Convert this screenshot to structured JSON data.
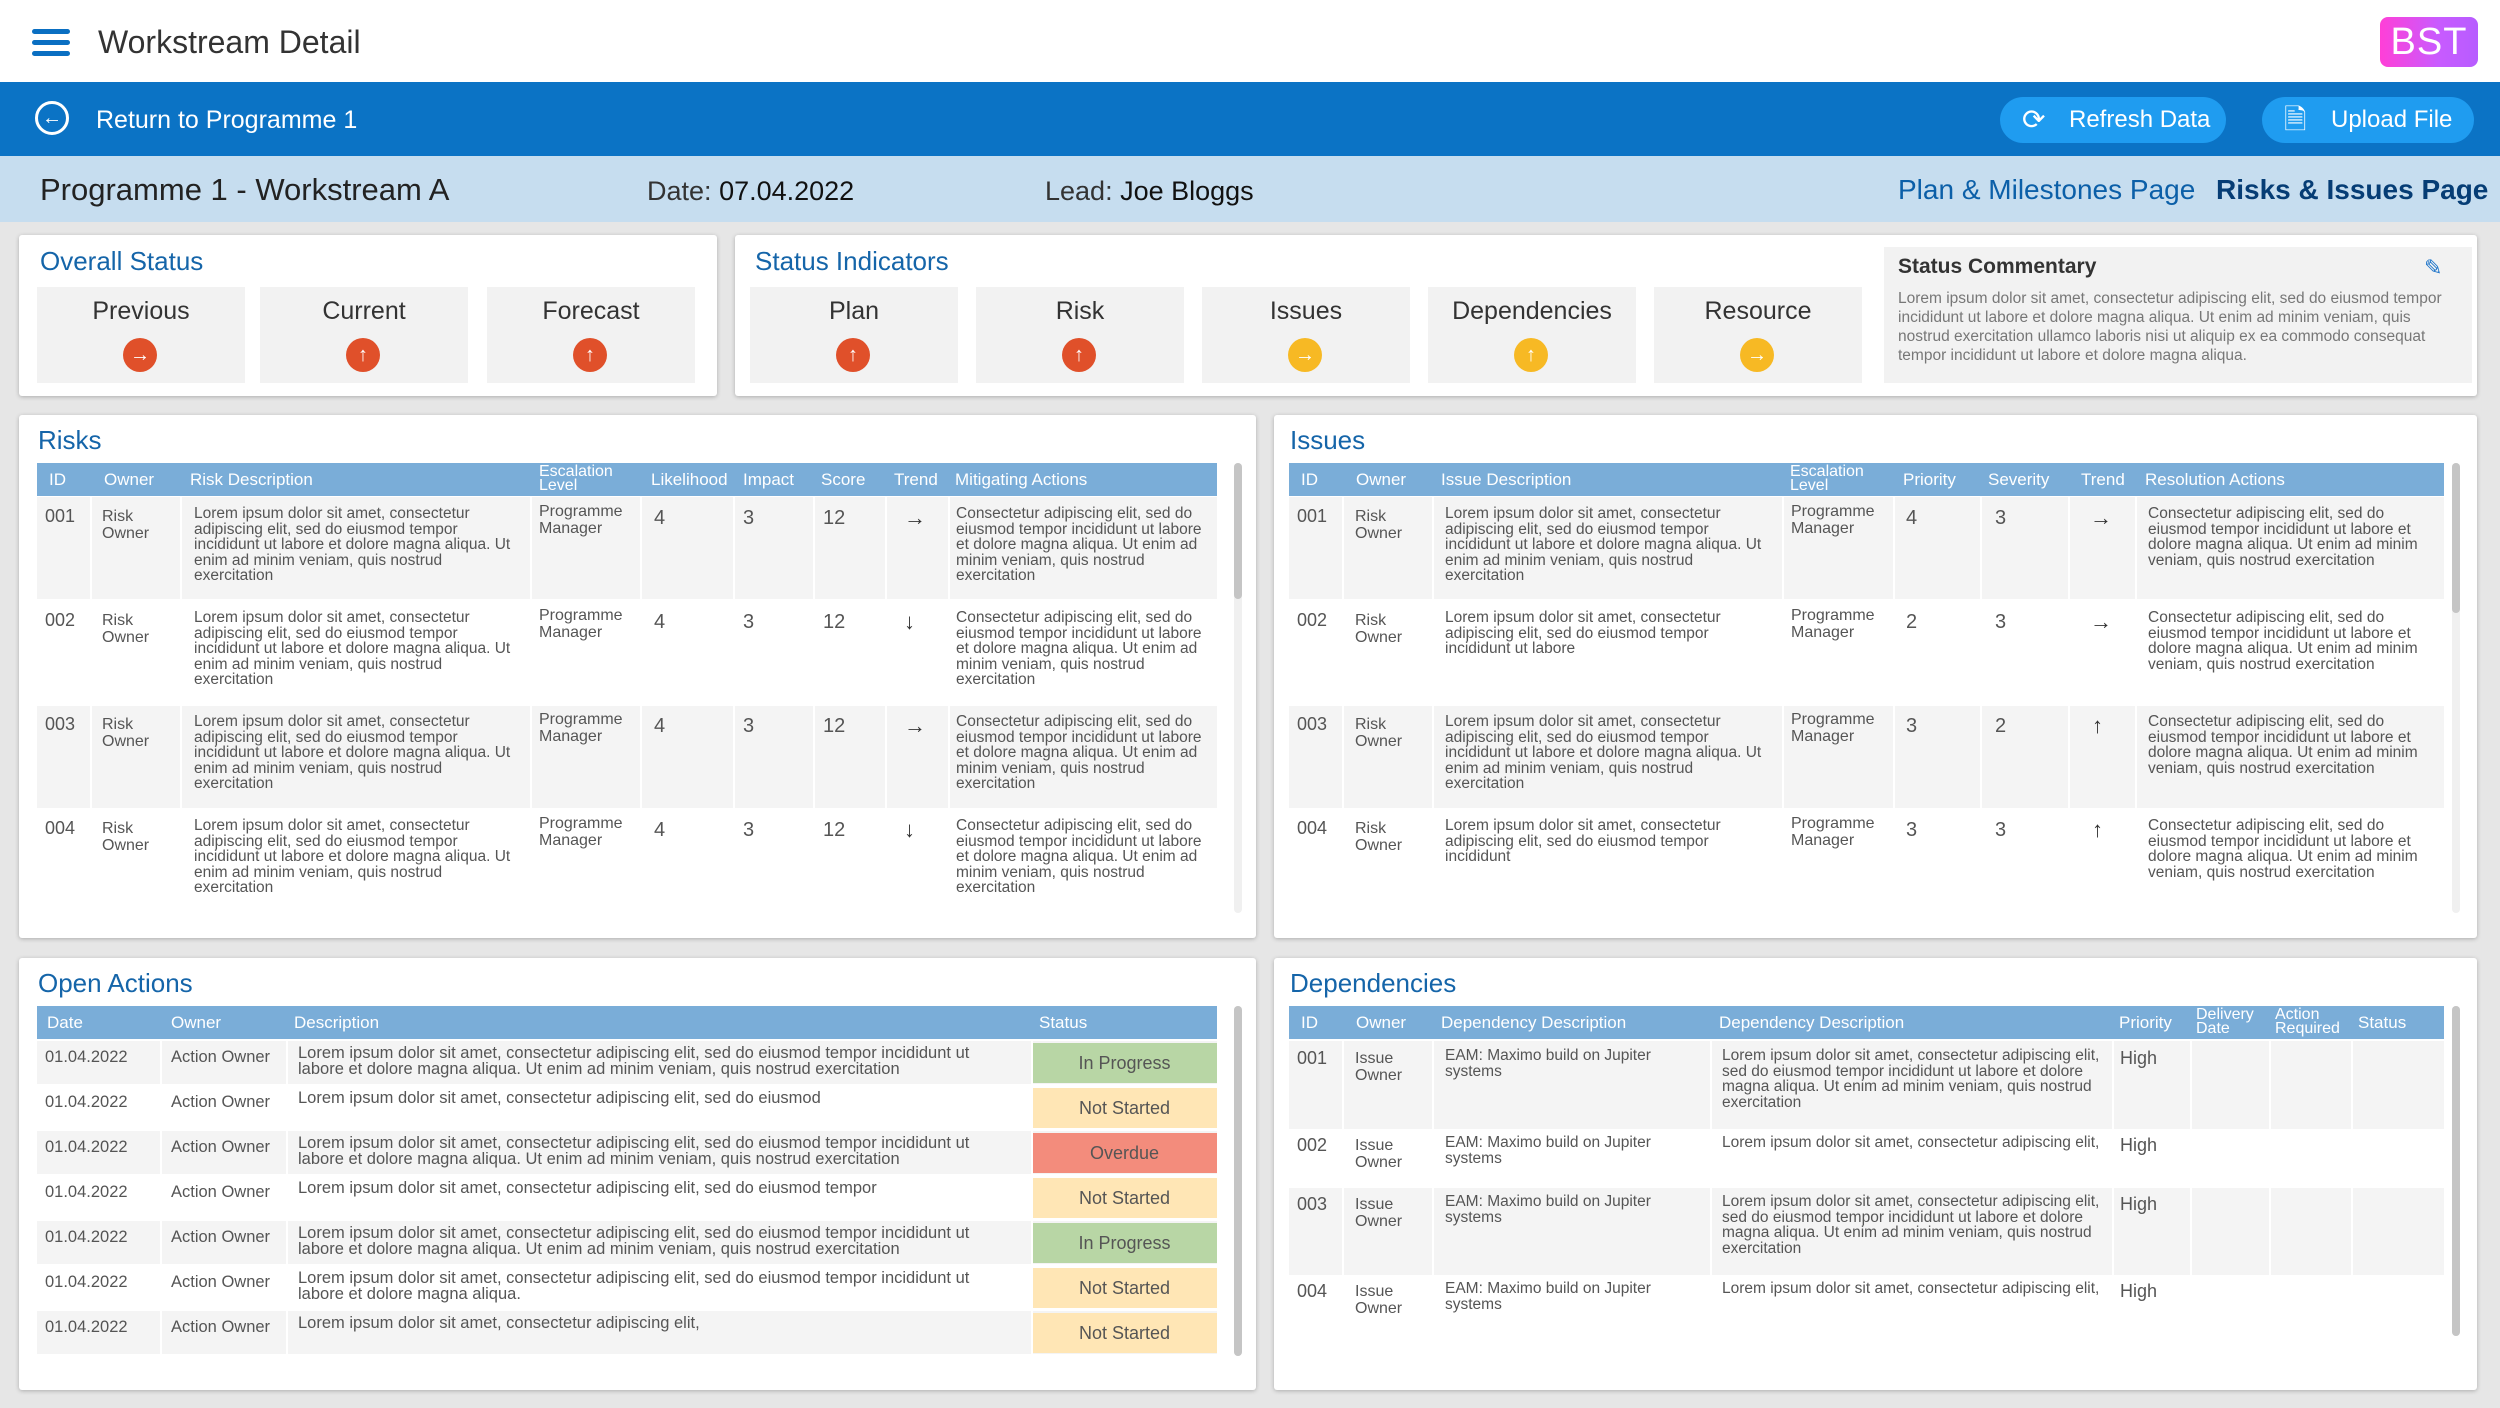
{
  "app": {
    "title": "Workstream Detail",
    "logo": "BST",
    "menu_icon": "hamburger-icon"
  },
  "nav": {
    "back_label": "Return to Programme 1",
    "refresh_label": "Refresh Data",
    "upload_label": "Upload File"
  },
  "sub": {
    "title": "Programme 1 - Workstream A",
    "date_label": "Date:",
    "date_value": "07.04.2022",
    "lead_label": "Lead:",
    "lead_value": "Joe Bloggs",
    "link_plan": "Plan & Milestones Page",
    "link_risks": "Risks & Issues Page"
  },
  "overall": {
    "title": "Overall Status",
    "tiles": [
      {
        "label": "Previous",
        "status": "red",
        "direction": "right"
      },
      {
        "label": "Current",
        "status": "red",
        "direction": "up"
      },
      {
        "label": "Forecast",
        "status": "red",
        "direction": "up"
      }
    ]
  },
  "indicators": {
    "title": "Status Indicators",
    "tiles": [
      {
        "label": "Plan",
        "status": "red",
        "direction": "up"
      },
      {
        "label": "Risk",
        "status": "red",
        "direction": "up"
      },
      {
        "label": "Issues",
        "status": "amber",
        "direction": "right"
      },
      {
        "label": "Dependencies",
        "status": "amber",
        "direction": "up"
      },
      {
        "label": "Resource",
        "status": "amber",
        "direction": "right"
      }
    ]
  },
  "commentary": {
    "title": "Status Commentary",
    "text": "Lorem ipsum dolor sit amet, consectetur adipiscing elit, sed do eiusmod tempor incididunt ut labore et dolore magna aliqua. Ut enim ad minim veniam, quis nostrud exercitation ullamco laboris nisi ut aliquip ex ea commodo consequat tempor incididunt ut labore et dolore magna aliqua."
  },
  "risks": {
    "title": "Risks",
    "headers": {
      "id": "ID",
      "owner": "Owner",
      "desc": "Risk Description",
      "esc1": "Escalation",
      "esc2": "Level",
      "likelihood": "Likelihood",
      "impact": "Impact",
      "score": "Score",
      "trend": "Trend",
      "actions": "Mitigating Actions"
    },
    "rows": [
      {
        "id": "001",
        "owner1": "Risk",
        "owner2": "Owner",
        "desc": "Lorem ipsum dolor sit amet, consectetur adipiscing elit, sed do eiusmod tempor incididunt ut labore et dolore magna aliqua. Ut enim ad minim veniam, quis nostrud exercitation",
        "esc1": "Programme",
        "esc2": "Manager",
        "likelihood": "4",
        "impact": "3",
        "score": "12",
        "trend": "→",
        "actions": "Consectetur adipiscing elit, sed do eiusmod tempor incididunt ut labore et dolore magna aliqua. Ut enim ad minim veniam, quis nostrud exercitation"
      },
      {
        "id": "002",
        "owner1": "Risk",
        "owner2": "Owner",
        "desc": "Lorem ipsum dolor sit amet, consectetur adipiscing elit, sed do eiusmod tempor incididunt ut labore et dolore magna aliqua. Ut enim ad minim veniam, quis nostrud exercitation",
        "esc1": "Programme",
        "esc2": "Manager",
        "likelihood": "4",
        "impact": "3",
        "score": "12",
        "trend": "↓",
        "actions": "Consectetur adipiscing elit, sed do eiusmod tempor incididunt ut labore et dolore magna aliqua. Ut enim ad minim veniam, quis nostrud exercitation"
      },
      {
        "id": "003",
        "owner1": "Risk",
        "owner2": "Owner",
        "desc": "Lorem ipsum dolor sit amet, consectetur adipiscing elit, sed do eiusmod tempor incididunt ut labore et dolore magna aliqua. Ut enim ad minim veniam, quis nostrud exercitation",
        "esc1": "Programme",
        "esc2": "Manager",
        "likelihood": "4",
        "impact": "3",
        "score": "12",
        "trend": "→",
        "actions": "Consectetur adipiscing elit, sed do eiusmod tempor incididunt ut labore et dolore magna aliqua. Ut enim ad minim veniam, quis nostrud exercitation"
      },
      {
        "id": "004",
        "owner1": "Risk",
        "owner2": "Owner",
        "desc": "Lorem ipsum dolor sit amet, consectetur adipiscing elit, sed do eiusmod tempor incididunt ut labore et dolore magna aliqua. Ut enim ad minim veniam, quis nostrud exercitation",
        "esc1": "Programme",
        "esc2": "Manager",
        "likelihood": "4",
        "impact": "3",
        "score": "12",
        "trend": "↓",
        "actions": "Consectetur adipiscing elit, sed do eiusmod tempor incididunt ut labore et dolore magna aliqua. Ut enim ad minim veniam, quis nostrud exercitation"
      }
    ]
  },
  "issues": {
    "title": "Issues",
    "headers": {
      "id": "ID",
      "owner": "Owner",
      "desc": "Issue Description",
      "esc1": "Escalation",
      "esc2": "Level",
      "priority": "Priority",
      "severity": "Severity",
      "trend": "Trend",
      "actions": "Resolution Actions"
    },
    "rows": [
      {
        "id": "001",
        "owner1": "Risk",
        "owner2": "Owner",
        "desc": "Lorem ipsum dolor sit amet, consectetur adipiscing elit, sed do eiusmod tempor incididunt ut labore et dolore magna aliqua. Ut enim ad minim veniam, quis nostrud exercitation",
        "esc1": "Programme",
        "esc2": "Manager",
        "priority": "4",
        "severity": "3",
        "trend": "→",
        "actions": "Consectetur adipiscing elit, sed do eiusmod tempor incididunt ut labore et dolore magna aliqua. Ut enim ad minim veniam, quis nostrud exercitation"
      },
      {
        "id": "002",
        "owner1": "Risk",
        "owner2": "Owner",
        "desc": "Lorem ipsum dolor sit amet, consectetur adipiscing elit, sed do eiusmod tempor incididunt ut labore",
        "esc1": "Programme",
        "esc2": "Manager",
        "priority": "2",
        "severity": "3",
        "trend": "→",
        "actions": "Consectetur adipiscing elit, sed do eiusmod tempor incididunt ut labore et dolore magna aliqua. Ut enim ad minim veniam, quis nostrud exercitation"
      },
      {
        "id": "003",
        "owner1": "Risk",
        "owner2": "Owner",
        "desc": "Lorem ipsum dolor sit amet, consectetur adipiscing elit, sed do eiusmod tempor incididunt ut labore et dolore magna aliqua. Ut enim ad minim veniam, quis nostrud exercitation",
        "esc1": "Programme",
        "esc2": "Manager",
        "priority": "3",
        "severity": "2",
        "trend": "↑",
        "actions": "Consectetur adipiscing elit, sed do eiusmod tempor incididunt ut labore et dolore magna aliqua. Ut enim ad minim veniam, quis nostrud exercitation"
      },
      {
        "id": "004",
        "owner1": "Risk",
        "owner2": "Owner",
        "desc": "Lorem ipsum dolor sit amet, consectetur adipiscing elit, sed do eiusmod tempor incididunt",
        "esc1": "Programme",
        "esc2": "Manager",
        "priority": "3",
        "severity": "3",
        "trend": "↑",
        "actions": "Consectetur adipiscing elit, sed do eiusmod tempor incididunt ut labore et dolore magna aliqua. Ut enim ad minim veniam, quis nostrud exercitation"
      }
    ]
  },
  "actions": {
    "title": "Open Actions",
    "headers": {
      "date": "Date",
      "owner": "Owner",
      "desc": "Description",
      "status": "Status"
    },
    "rows": [
      {
        "date": "01.04.2022",
        "owner": "Action Owner",
        "desc": "Lorem ipsum dolor sit amet, consectetur adipiscing elit, sed do eiusmod tempor incididunt ut labore et dolore magna aliqua. Ut enim ad minim veniam, quis nostrud exercitation",
        "status": "In Progress",
        "kind": "inprogress"
      },
      {
        "date": "01.04.2022",
        "owner": "Action Owner",
        "desc": "Lorem ipsum dolor sit amet, consectetur adipiscing elit, sed do eiusmod",
        "status": "Not Started",
        "kind": "notstarted"
      },
      {
        "date": "01.04.2022",
        "owner": "Action Owner",
        "desc": "Lorem ipsum dolor sit amet, consectetur adipiscing elit, sed do eiusmod tempor incididunt ut labore et dolore magna aliqua. Ut enim ad minim veniam, quis nostrud exercitation",
        "status": "Overdue",
        "kind": "overdue"
      },
      {
        "date": "01.04.2022",
        "owner": "Action Owner",
        "desc": "Lorem ipsum dolor sit amet, consectetur adipiscing elit, sed do eiusmod tempor",
        "status": "Not Started",
        "kind": "notstarted"
      },
      {
        "date": "01.04.2022",
        "owner": "Action Owner",
        "desc": "Lorem ipsum dolor sit amet, consectetur adipiscing elit, sed do eiusmod tempor incididunt ut labore et dolore magna aliqua. Ut enim ad minim veniam, quis nostrud exercitation",
        "status": "In Progress",
        "kind": "inprogress"
      },
      {
        "date": "01.04.2022",
        "owner": "Action Owner",
        "desc": "Lorem ipsum dolor sit amet, consectetur adipiscing elit, sed do eiusmod tempor incididunt ut labore et dolore magna aliqua.",
        "status": "Not Started",
        "kind": "notstarted"
      },
      {
        "date": "01.04.2022",
        "owner": "Action Owner",
        "desc": "Lorem ipsum dolor sit amet, consectetur adipiscing elit,",
        "status": "Not Started",
        "kind": "notstarted"
      }
    ]
  },
  "dependencies": {
    "title": "Dependencies",
    "headers": {
      "id": "ID",
      "owner": "Owner",
      "desc": "Dependency Description",
      "desc2": "Dependency Description",
      "priority": "Priority",
      "delivery1": "Delivery",
      "delivery2": "Date",
      "action1": "Action",
      "action2": "Required",
      "status": "Status"
    },
    "rows": [
      {
        "id": "001",
        "owner1": "Issue",
        "owner2": "Owner",
        "desc": "EAM: Maximo build on Jupiter systems",
        "desc2": "Lorem ipsum dolor sit amet, consectetur adipiscing elit, sed do eiusmod tempor incididunt ut labore et dolore magna aliqua. Ut enim ad minim veniam, quis nostrud exercitation",
        "priority": "High"
      },
      {
        "id": "002",
        "owner1": "Issue",
        "owner2": "Owner",
        "desc": "EAM: Maximo build on Jupiter systems",
        "desc2": "Lorem ipsum dolor sit amet, consectetur adipiscing elit,",
        "priority": "High"
      },
      {
        "id": "003",
        "owner1": "Issue",
        "owner2": "Owner",
        "desc": "EAM: Maximo build on Jupiter systems",
        "desc2": "Lorem ipsum dolor sit amet, consectetur adipiscing elit, sed do eiusmod tempor incididunt ut labore et dolore magna aliqua. Ut enim ad minim veniam, quis nostrud exercitation",
        "priority": "High"
      },
      {
        "id": "004",
        "owner1": "Issue",
        "owner2": "Owner",
        "desc": "EAM: Maximo build on Jupiter systems",
        "desc2": "Lorem ipsum dolor sit amet, consectetur adipiscing elit,",
        "priority": "High"
      }
    ]
  },
  "colors": {
    "primary": "#0b73c5",
    "header_row": "#7aadd8",
    "red": "#e0502a",
    "amber": "#f7b924",
    "in_progress": "#b8d6a5",
    "not_started": "#ffe6b5",
    "overdue": "#f38c7c"
  }
}
